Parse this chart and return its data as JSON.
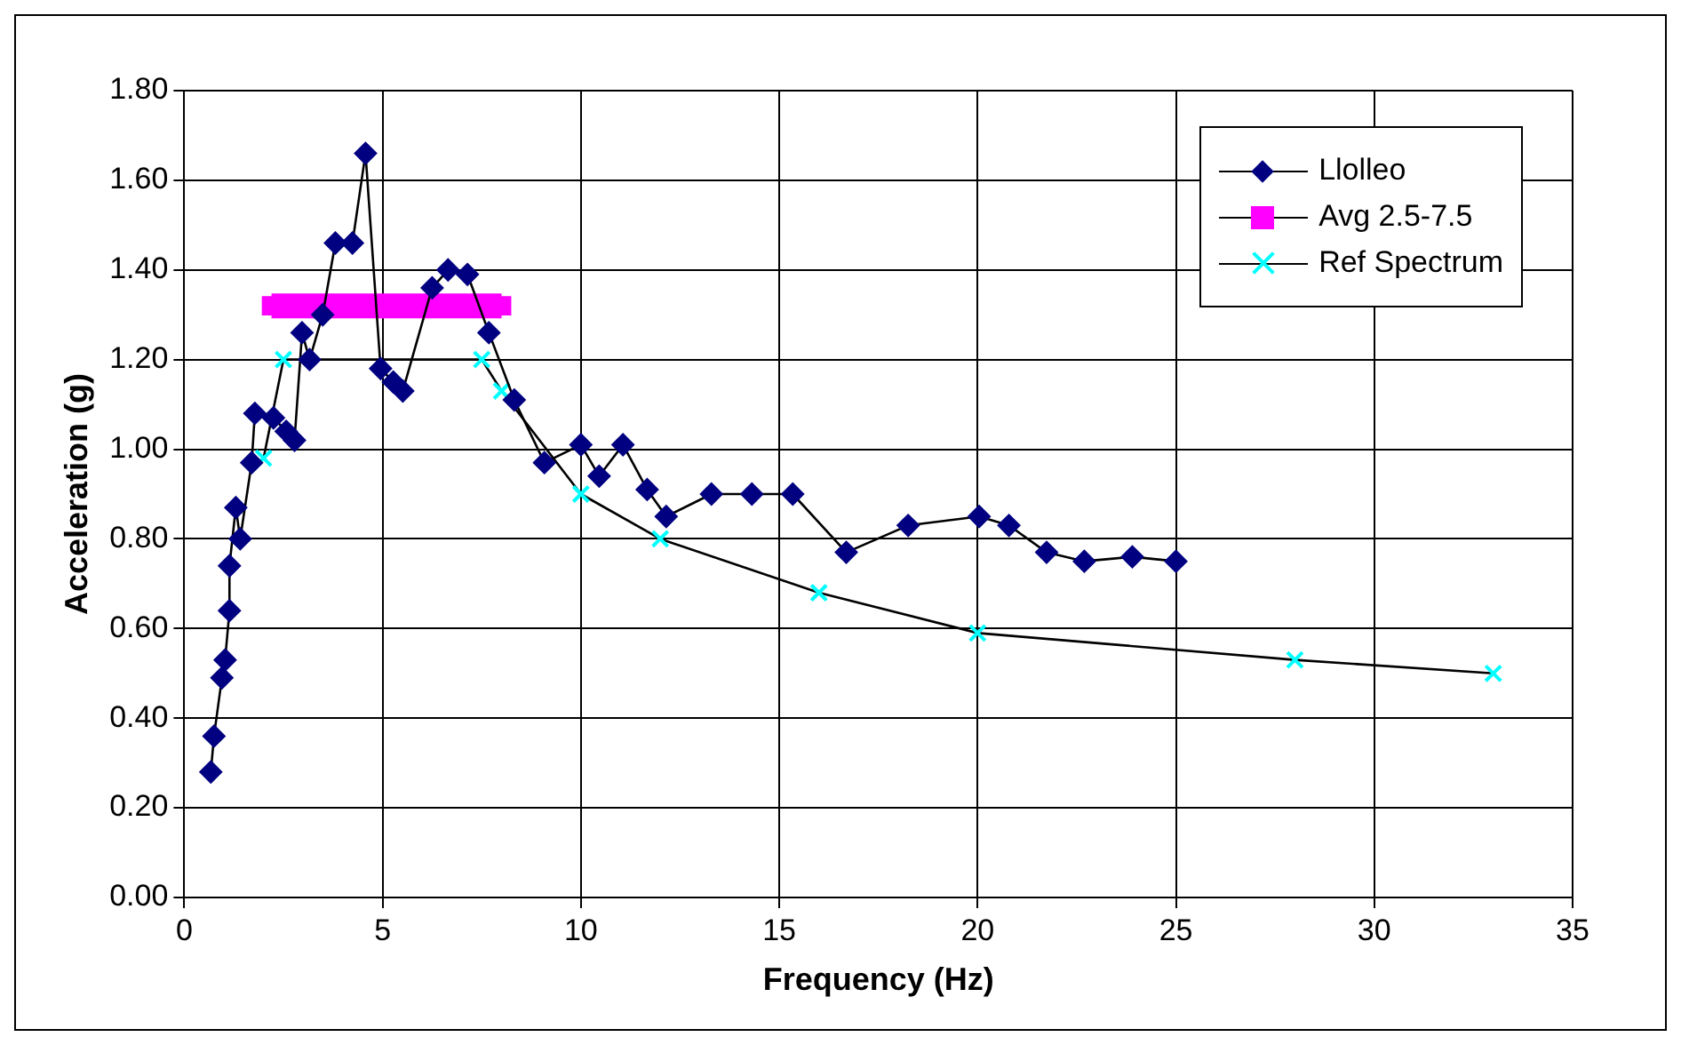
{
  "chart_data": {
    "type": "line",
    "xlabel": "Frequency (Hz)",
    "ylabel": "Acceleration (g)",
    "xlim": [
      0,
      35
    ],
    "xticks": [
      0,
      5,
      10,
      15,
      20,
      25,
      30,
      35
    ],
    "ylim": [
      0,
      1.8
    ],
    "yticks": [
      {
        "value": 0,
        "label": "0.00"
      },
      {
        "value": 0.2,
        "label": "0.20"
      },
      {
        "value": 0.4,
        "label": "0.40"
      },
      {
        "value": 0.6,
        "label": "0.60"
      },
      {
        "value": 0.8,
        "label": "0.80"
      },
      {
        "value": 1,
        "label": "1.00"
      },
      {
        "value": 1.2,
        "label": "1.20"
      },
      {
        "value": 1.4,
        "label": "1.40"
      },
      {
        "value": 1.6,
        "label": "1.60"
      },
      {
        "value": 1.8,
        "label": "1.80"
      }
    ],
    "grid": true,
    "legend": "top right",
    "series": [
      {
        "name": "Llolleo",
        "color": "#000080",
        "marker": "diamond",
        "x": [
          0.67,
          0.75,
          0.95,
          1.03,
          1.14,
          1.14,
          1.3,
          1.41,
          1.7,
          1.78,
          2.25,
          2.57,
          2.78,
          2.97,
          3.16,
          3.49,
          3.81,
          4.24,
          4.57,
          4.95,
          5.27,
          5.51,
          6.25,
          6.65,
          7.14,
          7.68,
          8.32,
          9.08,
          10.0,
          10.46,
          11.06,
          11.67,
          12.15,
          13.29,
          14.31,
          15.34,
          16.69,
          18.25,
          20.04,
          20.79,
          21.74,
          22.69,
          23.9,
          25.0
        ],
        "values": [
          0.28,
          0.36,
          0.49,
          0.53,
          0.64,
          0.74,
          0.87,
          0.8,
          0.97,
          1.08,
          1.07,
          1.04,
          1.02,
          1.26,
          1.2,
          1.3,
          1.46,
          1.46,
          1.66,
          1.18,
          1.15,
          1.13,
          1.36,
          1.4,
          1.39,
          1.26,
          1.11,
          0.97,
          1.01,
          0.94,
          1.01,
          0.91,
          0.85,
          0.9,
          0.9,
          0.9,
          0.77,
          0.83,
          0.85,
          0.83,
          0.77,
          0.75,
          0.76,
          0.75
        ]
      },
      {
        "name": "Avg 2.5-7.5",
        "color": "#ff00ff",
        "marker": "square",
        "x": [
          2.2,
          8.0
        ],
        "values": [
          1.32,
          1.32
        ]
      },
      {
        "name": "Ref Spectrum",
        "color": "#00ffff",
        "marker": "cross",
        "x": [
          2.0,
          2.5,
          7.5,
          8.0,
          10.0,
          12.0,
          16.0,
          20.0,
          28.0,
          33.0
        ],
        "values": [
          0.98,
          1.2,
          1.2,
          1.13,
          0.9,
          0.8,
          0.68,
          0.59,
          0.53,
          0.5
        ]
      }
    ]
  }
}
